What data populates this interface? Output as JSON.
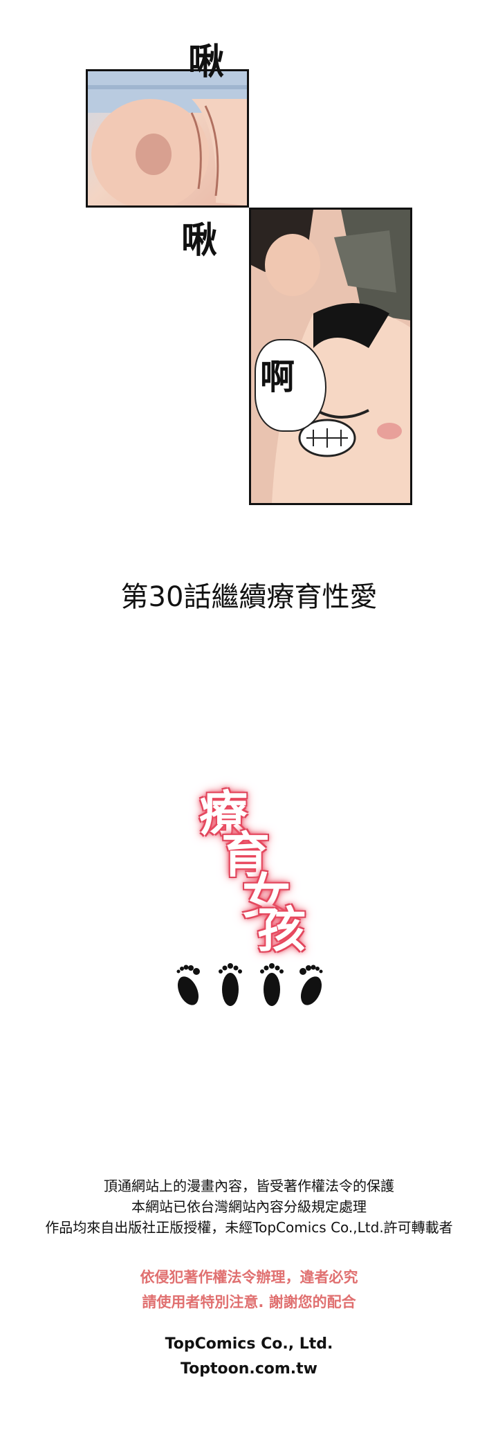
{
  "panels": {
    "sfx_top": "啾",
    "sfx_middle": "啾",
    "sfx_speech": "啊"
  },
  "chapter_title": "第30話繼續療育性愛",
  "logo": {
    "chars": [
      "療",
      "育",
      "女",
      "孩"
    ],
    "glow_color": "#e8435a"
  },
  "footprints_icon": "footprints-icon",
  "copyright": {
    "line1": "頂通網站上的漫畫內容，皆受著作權法令的保護",
    "line2": "本網站已依台灣網站內容分級規定處理",
    "line3": "作品均來自出版社正版授權，未經TopComics Co.,Ltd.許可轉載者"
  },
  "warning": {
    "line1": "依侵犯著作權法令辦理，違者必究",
    "line2": "請使用者特別注意. 謝謝您的配合",
    "color": "#e07070"
  },
  "brand": {
    "company": "TopComics Co., Ltd.",
    "site": "Toptoon.com.tw"
  }
}
